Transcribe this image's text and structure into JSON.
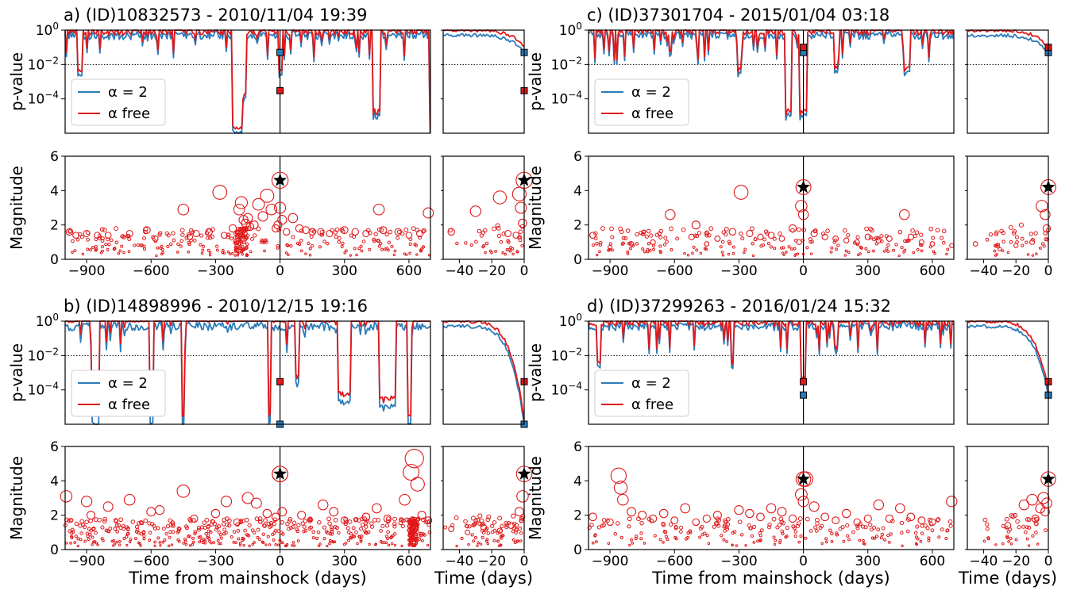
{
  "colors": {
    "alpha2": "#2b7bba",
    "alpha_free": "#e0191b",
    "mainshock": "#000000"
  },
  "labels": {
    "ylabel_top": "p-value",
    "ylabel_bottom": "Magnitude",
    "xlabel_main": "Time from mainshock (days)",
    "xlabel_inset": "Time (days)",
    "legend_alpha2": "α = 2",
    "legend_alpha_free": "α free"
  },
  "chart_data": [
    {
      "panel": "a",
      "type": "line",
      "title": "a) (ID)10832573 - 2010/11/04 19:39",
      "pvalue_final": {
        "alpha2": 0.05,
        "alpha_free": 0.0003
      },
      "mainshock_magnitude": 4.6,
      "events": [
        [
          -980,
          1.6
        ],
        [
          -950,
          1.4
        ],
        [
          -900,
          1.5
        ],
        [
          -850,
          1.4
        ],
        [
          -800,
          1.4
        ],
        [
          -700,
          1.5
        ],
        [
          -620,
          1.7
        ],
        [
          -580,
          1.2
        ],
        [
          -450,
          2.9
        ],
        [
          -420,
          1.3
        ],
        [
          -390,
          1.5
        ],
        [
          -330,
          1.6
        ],
        [
          -280,
          3.9
        ],
        [
          -260,
          1.4
        ],
        [
          -220,
          1.8
        ],
        [
          -190,
          2.9
        ],
        [
          -180,
          3.3
        ],
        [
          -170,
          2.3
        ],
        [
          -160,
          2.1
        ],
        [
          -150,
          2.4
        ],
        [
          -140,
          1.9
        ],
        [
          -120,
          2.0
        ],
        [
          -100,
          3.2
        ],
        [
          -80,
          2.5
        ],
        [
          -60,
          3.7
        ],
        [
          -40,
          2.9
        ],
        [
          -20,
          1.8
        ],
        [
          -10,
          2.0
        ],
        [
          0,
          3.0
        ],
        [
          10,
          2.3
        ],
        [
          30,
          1.6
        ],
        [
          60,
          2.4
        ],
        [
          90,
          1.8
        ],
        [
          120,
          1.7
        ],
        [
          150,
          1.6
        ],
        [
          190,
          1.6
        ],
        [
          230,
          1.5
        ],
        [
          300,
          1.7
        ],
        [
          350,
          1.6
        ],
        [
          400,
          1.5
        ],
        [
          460,
          2.9
        ],
        [
          480,
          1.7
        ],
        [
          550,
          1.6
        ],
        [
          600,
          1.4
        ],
        [
          650,
          1.5
        ],
        [
          690,
          2.7
        ]
      ],
      "inset_events": [
        [
          -45,
          1.6
        ],
        [
          -30,
          2.8
        ],
        [
          -15,
          3.6
        ],
        [
          -10,
          1.5
        ],
        [
          -5,
          1.4
        ],
        [
          -3,
          3.8
        ],
        [
          -2,
          3.0
        ],
        [
          -1,
          2.1
        ]
      ]
    },
    {
      "panel": "b",
      "type": "line",
      "title": "b) (ID)14898996 - 2010/12/15 19:16",
      "pvalue_final": {
        "alpha2": 1e-06,
        "alpha_free": 0.0003
      },
      "mainshock_magnitude": 4.4,
      "events": [
        [
          -995,
          3.1
        ],
        [
          -900,
          2.8
        ],
        [
          -880,
          2.0
        ],
        [
          -800,
          2.5
        ],
        [
          -700,
          2.9
        ],
        [
          -600,
          2.2
        ],
        [
          -560,
          2.3
        ],
        [
          -450,
          3.4
        ],
        [
          -400,
          1.8
        ],
        [
          -300,
          2.1
        ],
        [
          -250,
          2.8
        ],
        [
          -200,
          1.6
        ],
        [
          -150,
          3.0
        ],
        [
          -110,
          2.7
        ],
        [
          -60,
          2.1
        ],
        [
          -20,
          1.9
        ],
        [
          0,
          4.4
        ],
        [
          10,
          2.2
        ],
        [
          100,
          2.0
        ],
        [
          200,
          2.6
        ],
        [
          250,
          2.2
        ],
        [
          300,
          1.7
        ],
        [
          400,
          1.9
        ],
        [
          450,
          2.4
        ],
        [
          500,
          1.8
        ],
        [
          580,
          2.9
        ],
        [
          610,
          4.5
        ],
        [
          625,
          5.3
        ],
        [
          640,
          3.8
        ],
        [
          660,
          2.0
        ],
        [
          690,
          1.7
        ]
      ],
      "inset_events": [
        [
          -45,
          1.2
        ],
        [
          -35,
          1.0
        ],
        [
          -25,
          1.3
        ],
        [
          -15,
          1.1
        ],
        [
          -8,
          1.4
        ],
        [
          -3,
          2.2
        ],
        [
          -1,
          3.1
        ]
      ]
    },
    {
      "panel": "c",
      "type": "line",
      "title": "c) (ID)37301704 - 2015/01/04 03:18",
      "pvalue_final": {
        "alpha2": 0.05,
        "alpha_free": 0.1
      },
      "mainshock_magnitude": 4.2,
      "events": [
        [
          -980,
          1.4
        ],
        [
          -900,
          0.7
        ],
        [
          -800,
          0.9
        ],
        [
          -700,
          1.0
        ],
        [
          -620,
          2.6
        ],
        [
          -520,
          1.3
        ],
        [
          -500,
          2.0
        ],
        [
          -450,
          0.9
        ],
        [
          -400,
          1.2
        ],
        [
          -330,
          1.6
        ],
        [
          -290,
          3.9
        ],
        [
          -250,
          1.5
        ],
        [
          -200,
          1.3
        ],
        [
          -150,
          1.4
        ],
        [
          -100,
          1.2
        ],
        [
          -50,
          1.8
        ],
        [
          -20,
          1.0
        ],
        [
          -10,
          3.1
        ],
        [
          0,
          2.6
        ],
        [
          50,
          1.5
        ],
        [
          100,
          1.3
        ],
        [
          150,
          1.2
        ],
        [
          200,
          1.1
        ],
        [
          250,
          1.0
        ],
        [
          300,
          1.3
        ],
        [
          350,
          1.1
        ],
        [
          400,
          1.2
        ],
        [
          470,
          2.6
        ],
        [
          500,
          1.3
        ],
        [
          550,
          1.0
        ],
        [
          600,
          0.9
        ],
        [
          690,
          0.8
        ]
      ],
      "inset_events": [
        [
          -45,
          0.9
        ],
        [
          -30,
          0.6
        ],
        [
          -20,
          0.8
        ],
        [
          -10,
          1.0
        ],
        [
          -4,
          3.1
        ],
        [
          -2,
          2.6
        ],
        [
          -1,
          1.8
        ]
      ]
    },
    {
      "panel": "d",
      "type": "line",
      "title": "d) (ID)37299263 - 2016/01/24 15:32",
      "pvalue_final": {
        "alpha2": 5e-05,
        "alpha_free": 0.0003
      },
      "mainshock_magnitude": 4.1,
      "events": [
        [
          -980,
          1.9
        ],
        [
          -900,
          1.6
        ],
        [
          -860,
          4.3
        ],
        [
          -850,
          3.6
        ],
        [
          -840,
          2.9
        ],
        [
          -800,
          2.2
        ],
        [
          -750,
          2.0
        ],
        [
          -700,
          1.8
        ],
        [
          -650,
          2.1
        ],
        [
          -600,
          1.7
        ],
        [
          -550,
          2.4
        ],
        [
          -500,
          1.6
        ],
        [
          -450,
          1.8
        ],
        [
          -400,
          2.0
        ],
        [
          -300,
          2.3
        ],
        [
          -250,
          2.1
        ],
        [
          -200,
          1.9
        ],
        [
          -150,
          2.4
        ],
        [
          -100,
          2.2
        ],
        [
          -50,
          1.8
        ],
        [
          -10,
          3.2
        ],
        [
          0,
          2.8
        ],
        [
          10,
          4.1
        ],
        [
          50,
          2.5
        ],
        [
          100,
          1.9
        ],
        [
          150,
          1.7
        ],
        [
          200,
          2.1
        ],
        [
          250,
          1.6
        ],
        [
          300,
          1.8
        ],
        [
          350,
          2.6
        ],
        [
          400,
          1.8
        ],
        [
          450,
          2.4
        ],
        [
          500,
          1.9
        ],
        [
          550,
          1.7
        ],
        [
          600,
          1.6
        ],
        [
          690,
          2.8
        ]
      ],
      "inset_events": [
        [
          -25,
          1.4
        ],
        [
          -15,
          2.6
        ],
        [
          -10,
          2.9
        ],
        [
          -8,
          1.8
        ],
        [
          -5,
          2.4
        ],
        [
          -3,
          3.0
        ],
        [
          -2,
          2.2
        ],
        [
          -1,
          2.7
        ]
      ]
    }
  ]
}
